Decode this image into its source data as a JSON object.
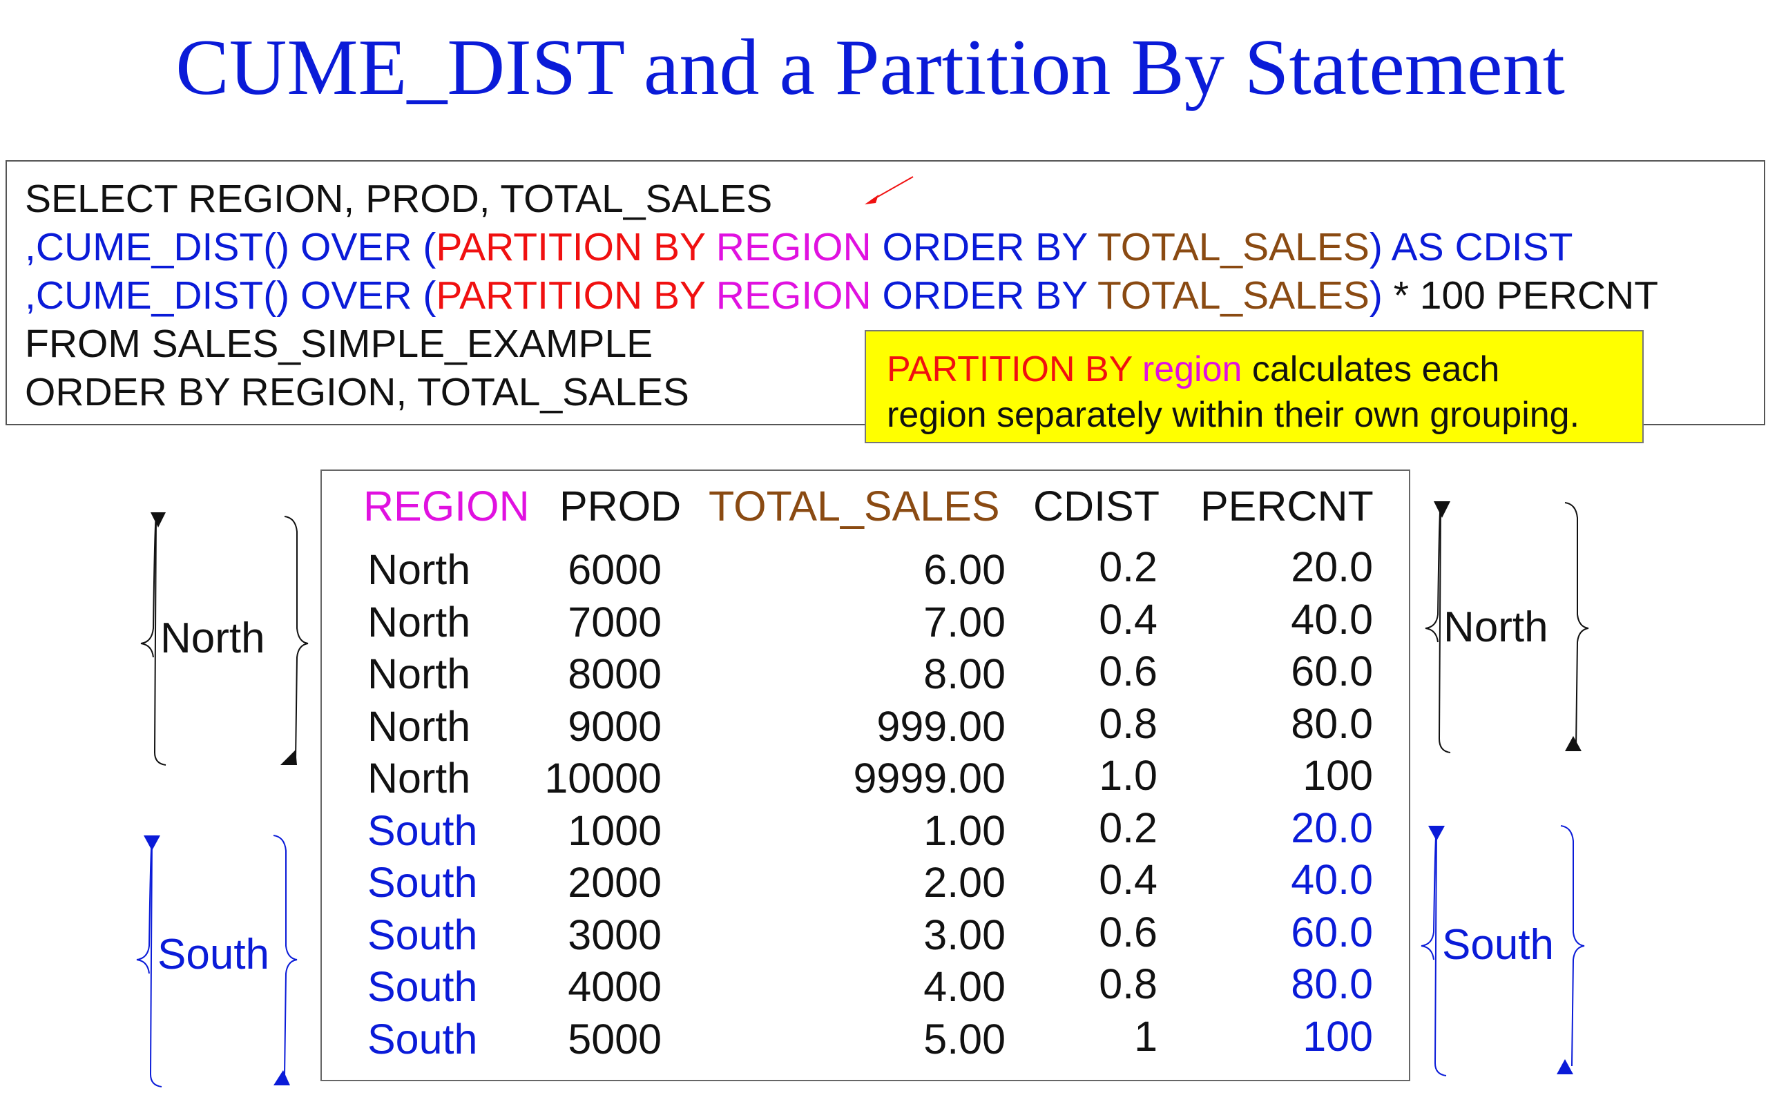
{
  "title": "CUME_DIST and a Partition By Statement",
  "sql": {
    "line1": "SELECT REGION, PROD, TOTAL_SALES",
    "line2": {
      "p1": ",CUME_DIST() OVER (",
      "p2": "PARTITION BY ",
      "p3": "REGION",
      "p4": " ORDER BY ",
      "p5": "TOTAL_SALES",
      "p6": ") AS CDIST"
    },
    "line3": {
      "p1": ",CUME_DIST() OVER (",
      "p2": "PARTITION BY ",
      "p3": "REGION",
      "p4": " ORDER BY ",
      "p5": "TOTAL_SALES",
      "p6": ")",
      "p7": " * 100 PERCNT"
    },
    "line4": "FROM SALES_SIMPLE_EXAMPLE",
    "line5": "ORDER BY REGION, TOTAL_SALES"
  },
  "note": {
    "part1": "PARTITION BY ",
    "part2": "region",
    "part3": " calculates each",
    "line2": "region separately within their own grouping."
  },
  "table": {
    "headers": [
      "REGION",
      "PROD",
      "TOTAL_SALES",
      "CDIST",
      "PERCNT"
    ],
    "rows": [
      [
        "North",
        "6000",
        "6.00",
        "0.2",
        "20.0"
      ],
      [
        "North",
        "7000",
        "7.00",
        "0.4",
        "40.0"
      ],
      [
        "North",
        "8000",
        "8.00",
        "0.6",
        "60.0"
      ],
      [
        "North",
        "9000",
        "999.00",
        "0.8",
        "80.0"
      ],
      [
        "North",
        "10000",
        "9999.00",
        "1.0",
        "100"
      ],
      [
        "South",
        "1000",
        "1.00",
        "0.2",
        "20.0"
      ],
      [
        "South",
        "2000",
        "2.00",
        "0.4",
        "40.0"
      ],
      [
        "South",
        "3000",
        "3.00",
        "0.6",
        "60.0"
      ],
      [
        "South",
        "4000",
        "4.00",
        "0.8",
        "80.0"
      ],
      [
        "South",
        "5000",
        "5.00",
        "1",
        "100"
      ]
    ]
  },
  "groups": {
    "left_north": "North",
    "left_south": "South",
    "right_north": "North",
    "right_south": "South"
  },
  "colors": {
    "title": "#0a1bd8",
    "keyword_blue": "#0a1bd8",
    "partition_red": "#f01010",
    "region_magenta": "#e011e0",
    "total_sales_brown": "#8a4a12",
    "note_background": "#ffff00"
  }
}
